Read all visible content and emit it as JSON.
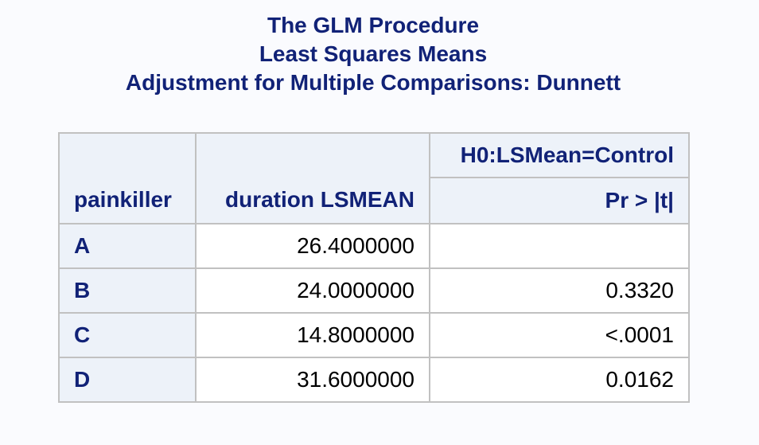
{
  "titles": {
    "line1": "The GLM Procedure",
    "line2": "Least Squares Means",
    "line3": "Adjustment for Multiple Comparisons: Dunnett"
  },
  "table": {
    "headers": {
      "col1": "painkiller",
      "col2": "duration LSMEAN",
      "span": "H0:LSMean=Control",
      "col3": "Pr > |t|"
    },
    "rows": [
      {
        "painkiller": "A",
        "lsmean": "26.4000000",
        "p": ""
      },
      {
        "painkiller": "B",
        "lsmean": "24.0000000",
        "p": "0.3320"
      },
      {
        "painkiller": "C",
        "lsmean": "14.8000000",
        "p": "<.0001"
      },
      {
        "painkiller": "D",
        "lsmean": "31.6000000",
        "p": "0.0162"
      }
    ]
  },
  "colors": {
    "title_text": "#112277",
    "header_bg": "#edf2f9",
    "border": "#c1c1c1",
    "page_bg": "#fafbfe"
  }
}
